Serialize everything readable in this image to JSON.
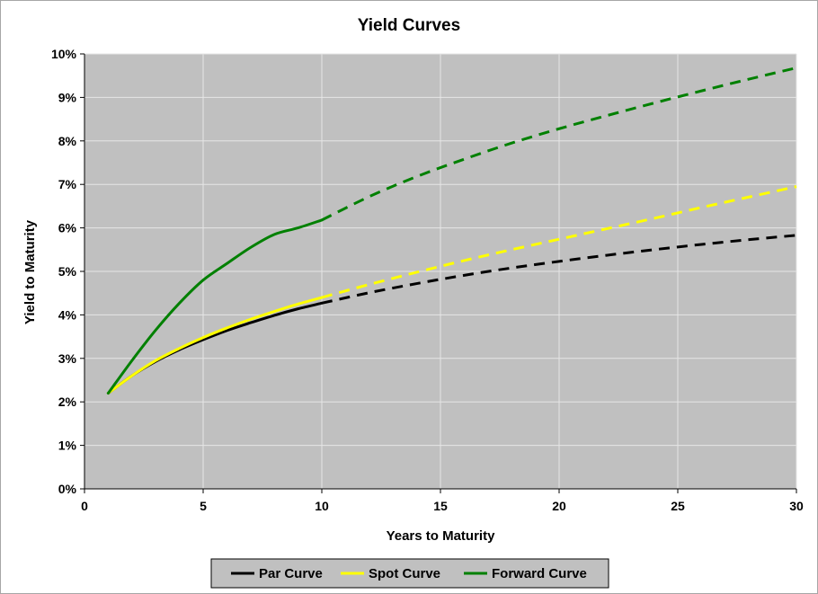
{
  "chart_data": {
    "type": "line",
    "title": "Yield Curves",
    "xlabel": "Years to Maturity",
    "ylabel": "Yield to Maturity",
    "xlim": [
      0,
      30
    ],
    "ylim": [
      0,
      10
    ],
    "x_ticks": [
      0,
      5,
      10,
      15,
      20,
      25,
      30
    ],
    "x_tick_labels": [
      "0",
      "5",
      "10",
      "15",
      "20",
      "25",
      "30"
    ],
    "y_ticks": [
      0,
      1,
      2,
      3,
      4,
      5,
      6,
      7,
      8,
      9,
      10
    ],
    "y_tick_labels": [
      "0%",
      "1%",
      "2%",
      "3%",
      "4%",
      "5%",
      "6%",
      "7%",
      "8%",
      "9%",
      "10%"
    ],
    "grid": true,
    "plot_background": "#c0c0c0",
    "legend_placement": "bottom",
    "solid_until_x": 10,
    "dashed_after_x": 10,
    "series": [
      {
        "name": "Par Curve",
        "color": "#000000",
        "x": [
          1,
          2,
          3,
          4,
          5,
          6,
          7,
          8,
          9,
          10,
          12,
          14,
          16,
          18,
          20,
          22,
          24,
          26,
          28,
          30
        ],
        "y": [
          2.2,
          2.6,
          2.93,
          3.2,
          3.43,
          3.64,
          3.82,
          3.99,
          4.14,
          4.27,
          4.51,
          4.72,
          4.91,
          5.08,
          5.23,
          5.37,
          5.5,
          5.62,
          5.73,
          5.83
        ]
      },
      {
        "name": "Spot Curve",
        "color": "#ffff00",
        "x": [
          1,
          2,
          3,
          4,
          5,
          6,
          7,
          8,
          9,
          10,
          12,
          14,
          16,
          18,
          20,
          22,
          24,
          26,
          28,
          30
        ],
        "y": [
          2.2,
          2.6,
          2.95,
          3.23,
          3.48,
          3.7,
          3.9,
          4.08,
          4.25,
          4.4,
          4.7,
          4.98,
          5.25,
          5.5,
          5.74,
          5.98,
          6.22,
          6.47,
          6.71,
          6.95
        ]
      },
      {
        "name": "Forward Curve",
        "color": "#008000",
        "x": [
          1,
          2,
          3,
          4,
          5,
          6,
          7,
          8,
          9,
          10,
          12,
          14,
          16,
          18,
          20,
          22,
          24,
          26,
          28,
          30
        ],
        "y": [
          2.2,
          2.95,
          3.65,
          4.27,
          4.8,
          5.18,
          5.55,
          5.85,
          6.0,
          6.18,
          6.72,
          7.18,
          7.58,
          7.95,
          8.28,
          8.58,
          8.87,
          9.15,
          9.42,
          9.68
        ]
      }
    ]
  }
}
